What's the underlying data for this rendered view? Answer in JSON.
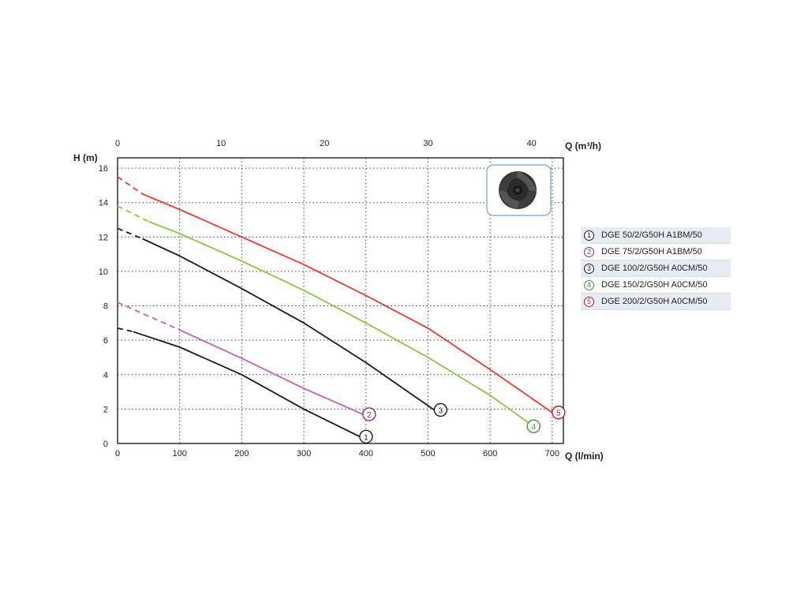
{
  "chart_data": {
    "type": "line",
    "ylabel": "H (m)",
    "xlabel": "Q (l/min)",
    "x2label": "Q (m³/h)",
    "xlim": [
      0,
      718
    ],
    "ylim": [
      0,
      16.6
    ],
    "x2lim": [
      0,
      43.08
    ],
    "xticks": [
      "0",
      "100",
      "200",
      "300",
      "400",
      "500",
      "600",
      "700"
    ],
    "x2ticks": [
      "0",
      "10",
      "20",
      "30",
      "40"
    ],
    "yticks": [
      "0",
      "2",
      "4",
      "6",
      "8",
      "10",
      "12",
      "14",
      "16"
    ],
    "grid": true,
    "legend_position": "right",
    "series": [
      {
        "name": "DGE 50/2/G50H A1BM/50",
        "marker": "1",
        "color": "#1a1a1a",
        "x": [
          0,
          25,
          100,
          200,
          300,
          390
        ],
        "y": [
          6.7,
          6.5,
          5.6,
          4.0,
          2.0,
          0.4
        ]
      },
      {
        "name": "DGE 75/2/G50H A1BM/50",
        "marker": "2",
        "color": "#c060c0",
        "x": [
          0,
          100,
          200,
          300,
          395
        ],
        "y": [
          8.2,
          6.6,
          4.95,
          3.2,
          1.7
        ]
      },
      {
        "name": "DGE 100/2/G50H A0CM/50",
        "marker": "3",
        "color": "#1a1a1a",
        "x": [
          0,
          40,
          100,
          200,
          300,
          400,
          510
        ],
        "y": [
          12.5,
          11.9,
          10.9,
          9.0,
          7.0,
          4.7,
          1.95
        ]
      },
      {
        "name": "DGE 150/2/G50H A0CM/50",
        "marker": "4",
        "color": "#8cc63f",
        "x": [
          0,
          50,
          100,
          200,
          300,
          400,
          500,
          600,
          670
        ],
        "y": [
          13.8,
          12.9,
          12.2,
          10.6,
          8.9,
          7.0,
          5.0,
          2.8,
          1.0
        ]
      },
      {
        "name": "DGE 200/2/G50H A0CM/50",
        "marker": "5",
        "color": "#e8392b",
        "x": [
          0,
          40,
          100,
          200,
          300,
          400,
          500,
          600,
          700
        ],
        "y": [
          15.5,
          14.5,
          13.6,
          12.0,
          10.4,
          8.6,
          6.7,
          4.3,
          1.8
        ]
      }
    ]
  },
  "colors": {
    "marker_2": "#8b2a7a",
    "marker_4": "#3a9a3a",
    "marker_5": "#b0202a",
    "impeller_frame": "#8fb0c8"
  },
  "impeller_image": "impeller-icon"
}
